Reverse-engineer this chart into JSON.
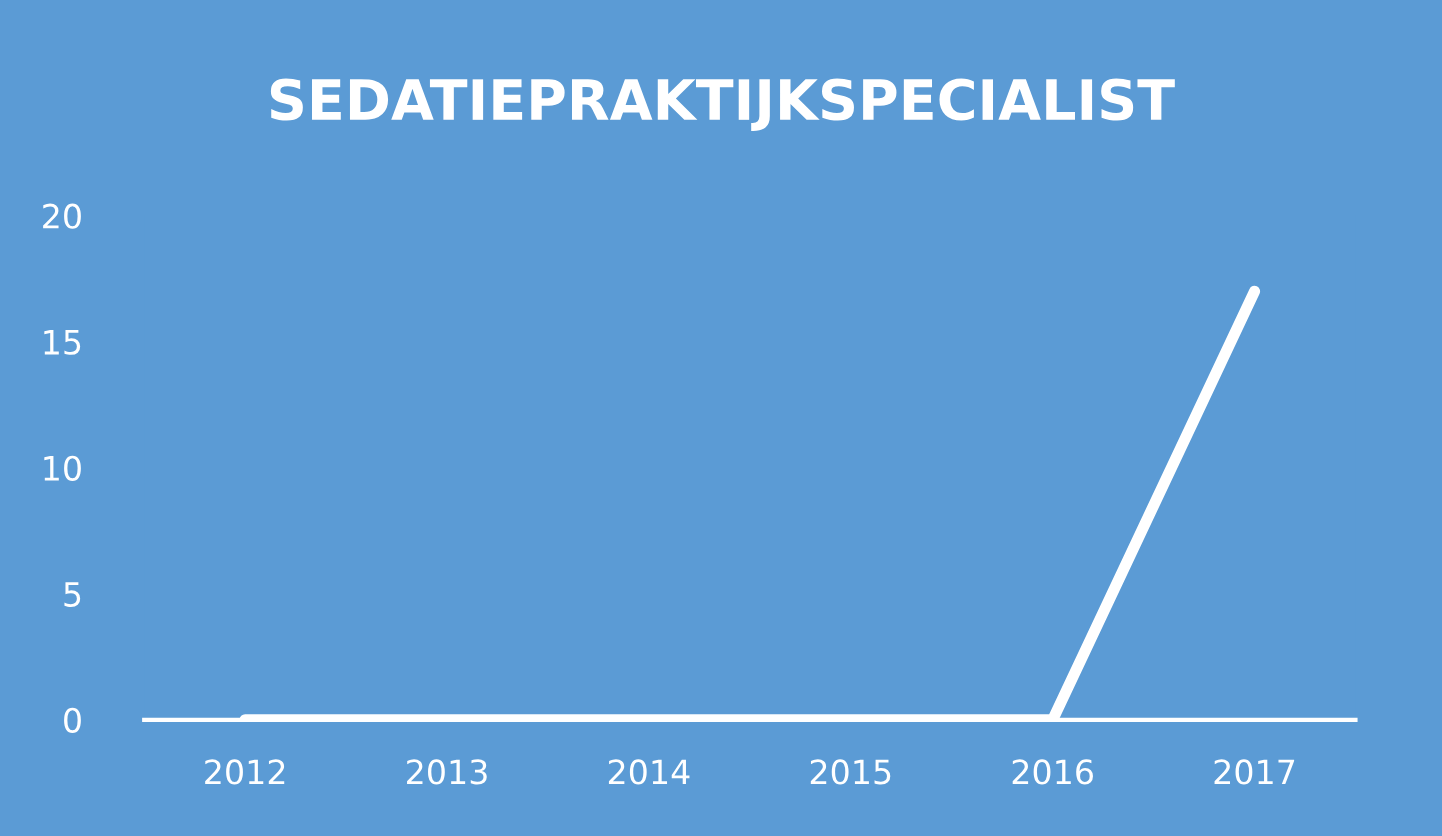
{
  "chart_data": {
    "type": "line",
    "title": "SEDATIEPRAKTIJKSPECIALIST",
    "categories": [
      "2012",
      "2013",
      "2014",
      "2015",
      "2016",
      "2017"
    ],
    "series": [
      {
        "color": "#ffffff",
        "values": [
          0,
          0,
          0,
          0,
          0,
          17
        ]
      }
    ],
    "ylim": [
      0,
      20
    ],
    "yticks": [
      0,
      5,
      10,
      15,
      20
    ],
    "grid": false,
    "legend": false,
    "marker": "none",
    "line_style": "solid"
  }
}
